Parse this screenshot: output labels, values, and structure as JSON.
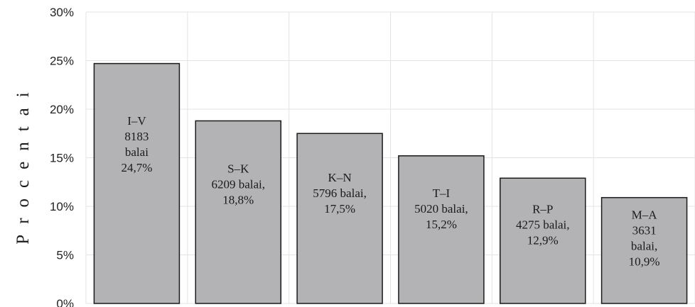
{
  "chart_data": {
    "type": "bar",
    "title": "",
    "xlabel": "",
    "ylabel": "Procentai",
    "ylim": [
      0,
      30
    ],
    "yticks": [
      "0%",
      "5%",
      "10%",
      "15%",
      "20%",
      "25%",
      "30%"
    ],
    "grid": true,
    "categories": [
      "I–V",
      "S–K",
      "K–N",
      "T–I",
      "R–P",
      "M–A"
    ],
    "values": [
      24.7,
      18.8,
      17.5,
      15.2,
      12.9,
      10.9
    ],
    "bar_labels": [
      [
        "I–V",
        "8183",
        "balai",
        "24,7%"
      ],
      [
        "S–K",
        "6209 balai,",
        "18,8%"
      ],
      [
        "K–N",
        "5796 balai,",
        "17,5%"
      ],
      [
        "T–I",
        "5020 balai,",
        "15,2%"
      ],
      [
        "R–P",
        "4275 balai,",
        "12,9%"
      ],
      [
        "M–A",
        "3631",
        "balai,",
        "10,9%"
      ]
    ],
    "colors": {
      "bar": "#b3b3b5",
      "bar_stroke": "#1a1a1a",
      "grid": "#e3e3e3"
    }
  }
}
